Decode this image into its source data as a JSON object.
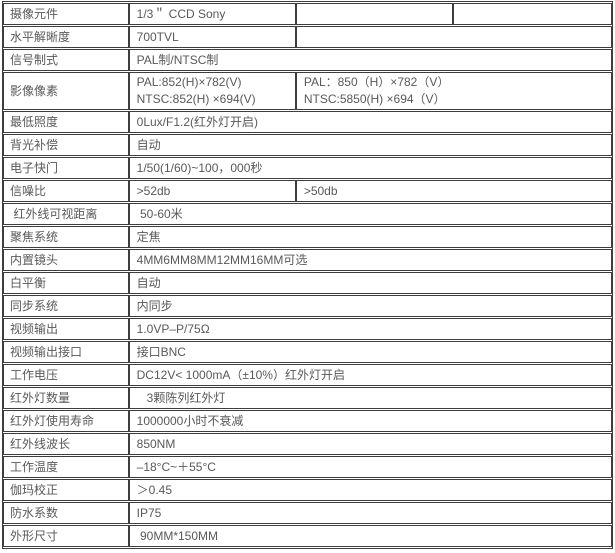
{
  "colors": {
    "border": "#3e3e3e",
    "text": "#595959",
    "background": "#ffffff"
  },
  "table": {
    "columns": [
      124,
      165,
      155,
      157
    ],
    "rows": [
      {
        "label": "摄像元件",
        "cells": [
          {
            "text": "1/3＂ CCD Sony",
            "span": 1
          },
          {
            "text": "",
            "span": 1
          },
          {
            "text": "",
            "span": 1
          }
        ]
      },
      {
        "label": "水平解晰度",
        "cells": [
          {
            "text": "700TVL",
            "span": 1
          },
          {
            "text": "",
            "span": 2
          }
        ]
      },
      {
        "label": "信号制式",
        "cells": [
          {
            "text": "PAL制/NTSC制",
            "span": 3
          }
        ]
      },
      {
        "label": "影像像素",
        "cells": [
          {
            "text": "PAL:852(H)×782(V)\nNTSC:852(H) ×694(V)",
            "span": 1
          },
          {
            "text": "PAL：850（H）×782（V）\nNTSC:5850(H) ×694（V）",
            "span": 2
          }
        ]
      },
      {
        "label": "最低照度",
        "cells": [
          {
            "text": "0Lux/F1.2(红外灯开启)",
            "span": 3
          }
        ]
      },
      {
        "label": "背光补偿",
        "cells": [
          {
            "text": "自动",
            "span": 3
          }
        ]
      },
      {
        "label": "电子快门",
        "cells": [
          {
            "text": "1/50(1/60)~100，000秒",
            "span": 3
          }
        ]
      },
      {
        "label": "信噪比",
        "cells": [
          {
            "text": ">52db",
            "span": 1
          },
          {
            "text": ">50db",
            "span": 2
          }
        ]
      },
      {
        "label": " 红外线可视距离",
        "cells": [
          {
            "text": " 50-60米",
            "span": 3
          }
        ]
      },
      {
        "label": "聚焦系统",
        "cells": [
          {
            "text": "定焦",
            "span": 3
          }
        ]
      },
      {
        "label": "内置镜头",
        "cells": [
          {
            "text": "4MM6MM8MM12MM16MM可选",
            "span": 3
          }
        ]
      },
      {
        "label": "白平衡",
        "cells": [
          {
            "text": "自动",
            "span": 3
          }
        ]
      },
      {
        "label": "同步系统",
        "cells": [
          {
            "text": "内同步",
            "span": 3
          }
        ]
      },
      {
        "label": "视频输出",
        "cells": [
          {
            "text": "1.0VP–P/75Ω",
            "span": 3
          }
        ]
      },
      {
        "label": "视频输出接口",
        "cells": [
          {
            "text": "接口BNC",
            "span": 3
          }
        ]
      },
      {
        "label": "工作电压",
        "cells": [
          {
            "text": "DC12V< 1000mA（±10%）红外灯开启",
            "span": 3
          }
        ]
      },
      {
        "label": "红外灯数量",
        "cells": [
          {
            "text": "   3颗陈列红外灯",
            "span": 3
          }
        ]
      },
      {
        "label": "红外灯使用寿命",
        "cells": [
          {
            "text": "1000000小时不衰减",
            "span": 3
          }
        ]
      },
      {
        "label": "红外线波长",
        "cells": [
          {
            "text": "850NM",
            "span": 3
          }
        ]
      },
      {
        "label": "工作温度",
        "cells": [
          {
            "text": "–18°C~＋55°C",
            "span": 3
          }
        ]
      },
      {
        "label": "伽玛校正",
        "cells": [
          {
            "text": "＞0.45",
            "span": 3
          }
        ]
      },
      {
        "label": "防水系数",
        "cells": [
          {
            "text": "IP75",
            "span": 3
          }
        ]
      },
      {
        "label": "外形尺寸",
        "cells": [
          {
            "text": " 90MM*150MM",
            "span": 3
          }
        ]
      }
    ]
  }
}
